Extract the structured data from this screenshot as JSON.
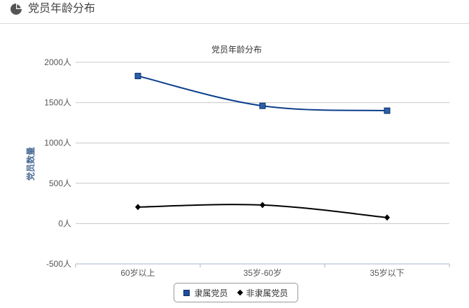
{
  "panel": {
    "title": "党员年龄分布",
    "icon": "pie-chart-icon"
  },
  "chart_data": {
    "type": "line",
    "title": "党员年龄分布",
    "ylabel": "党员数量",
    "xlabel": "",
    "categories": [
      "60岁以上",
      "35岁-60岁",
      "35岁以下"
    ],
    "ylim": [
      -500,
      2000
    ],
    "yticks": [
      {
        "value": 2000,
        "label": "2000人"
      },
      {
        "value": 1500,
        "label": "1500人"
      },
      {
        "value": 1000,
        "label": "1000人"
      },
      {
        "value": 500,
        "label": "500人"
      },
      {
        "value": 0,
        "label": "0人"
      },
      {
        "value": -500,
        "label": "-500人"
      }
    ],
    "grid": true,
    "legend_position": "bottom-center",
    "series": [
      {
        "name": "隶属党员",
        "values": [
          1830,
          1460,
          1400
        ],
        "color": "#0b3d8c",
        "marker": "square"
      },
      {
        "name": "非隶属党员",
        "values": [
          205,
          230,
          75
        ],
        "color": "#000000",
        "marker": "diamond"
      }
    ]
  }
}
